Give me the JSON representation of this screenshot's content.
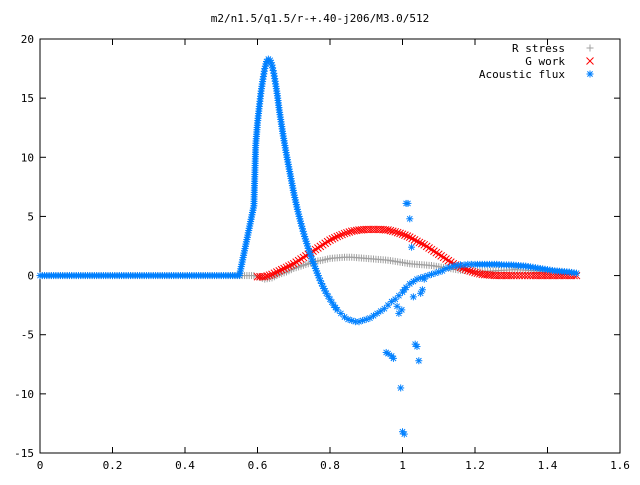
{
  "chart_data": {
    "type": "scatter",
    "title": "m2/n1.5/q1.5/r-+.40-j206/M3.0/512",
    "xlabel": "",
    "ylabel": "",
    "xlim": [
      0,
      1.6
    ],
    "ylim": [
      -15,
      20
    ],
    "grid": false,
    "legend_position": "top-right",
    "x_ticks": [
      "0",
      "0.2",
      "0.4",
      "0.6",
      "0.8",
      "1",
      "1.2",
      "1.4",
      "1.6"
    ],
    "y_ticks": [
      "-15",
      "-10",
      "-5",
      "0",
      "5",
      "10",
      "15",
      "20"
    ],
    "series": [
      {
        "name": "R stress",
        "marker": "+",
        "color": "#a0a0a0",
        "x": [
          0.0,
          0.1,
          0.2,
          0.3,
          0.4,
          0.5,
          0.59,
          0.6,
          0.62,
          0.64,
          0.66,
          0.68,
          0.7,
          0.72,
          0.74,
          0.76,
          0.78,
          0.8,
          0.82,
          0.84,
          0.86,
          0.88,
          0.9,
          0.92,
          0.94,
          0.96,
          0.98,
          1.0,
          1.02,
          1.04,
          1.06,
          1.08,
          1.1,
          1.12,
          1.14,
          1.16,
          1.18,
          1.2,
          1.22,
          1.25,
          1.28,
          1.31,
          1.34,
          1.37,
          1.4,
          1.43,
          1.46,
          1.48
        ],
        "y": [
          0,
          0,
          0,
          0,
          0,
          0,
          0,
          -0.1,
          -0.3,
          -0.2,
          0.1,
          0.3,
          0.6,
          0.8,
          1.0,
          1.2,
          1.3,
          1.45,
          1.5,
          1.55,
          1.55,
          1.5,
          1.45,
          1.4,
          1.35,
          1.3,
          1.2,
          1.1,
          1.0,
          0.95,
          0.9,
          0.85,
          0.75,
          0.65,
          0.55,
          0.45,
          0.4,
          0.35,
          0.35,
          0.4,
          0.45,
          0.5,
          0.45,
          0.4,
          0.35,
          0.3,
          0.25,
          0.2
        ]
      },
      {
        "name": "G work",
        "marker": "x",
        "color": "#ff0000",
        "x": [
          0.6,
          0.62,
          0.64,
          0.66,
          0.68,
          0.7,
          0.72,
          0.74,
          0.76,
          0.78,
          0.8,
          0.82,
          0.84,
          0.86,
          0.88,
          0.9,
          0.92,
          0.94,
          0.96,
          0.98,
          1.0,
          1.02,
          1.04,
          1.06,
          1.08,
          1.1,
          1.12,
          1.14,
          1.16,
          1.18,
          1.2,
          1.22,
          1.24,
          1.26,
          1.28,
          1.3,
          1.33,
          1.36,
          1.4,
          1.44,
          1.48
        ],
        "y": [
          -0.1,
          -0.1,
          0.1,
          0.4,
          0.7,
          1.0,
          1.4,
          1.8,
          2.2,
          2.6,
          3.0,
          3.3,
          3.55,
          3.75,
          3.85,
          3.9,
          3.9,
          3.9,
          3.85,
          3.7,
          3.5,
          3.25,
          2.9,
          2.6,
          2.2,
          1.8,
          1.4,
          1.0,
          0.7,
          0.45,
          0.25,
          0.1,
          0.05,
          0.0,
          0.0,
          0.0,
          0.0,
          0.0,
          0.0,
          0.0,
          0.0
        ]
      },
      {
        "name": "Acoustic flux",
        "marker": "*",
        "color": "#0080ff",
        "x": [
          0.0,
          0.05,
          0.1,
          0.15,
          0.2,
          0.25,
          0.3,
          0.35,
          0.4,
          0.45,
          0.5,
          0.55,
          0.59,
          0.595,
          0.6,
          0.605,
          0.61,
          0.615,
          0.62,
          0.625,
          0.63,
          0.635,
          0.64,
          0.645,
          0.65,
          0.655,
          0.66,
          0.67,
          0.68,
          0.69,
          0.7,
          0.71,
          0.72,
          0.73,
          0.74,
          0.75,
          0.76,
          0.77,
          0.78,
          0.79,
          0.8,
          0.81,
          0.82,
          0.83,
          0.84,
          0.85,
          0.86,
          0.87,
          0.88,
          0.89,
          0.9,
          0.91,
          0.92,
          0.93,
          0.94,
          0.95,
          0.96,
          0.97,
          0.98,
          0.99,
          1.0,
          1.005,
          1.01,
          1.02,
          1.03,
          1.04,
          1.05,
          1.06,
          1.07,
          1.08,
          1.09,
          1.1,
          1.11,
          1.12,
          1.13,
          1.14,
          1.15,
          1.16,
          1.17,
          1.18,
          1.19,
          1.2,
          1.22,
          1.24,
          1.26,
          1.28,
          1.3,
          1.32,
          1.34,
          1.36,
          1.38,
          1.4,
          1.42,
          1.44,
          1.46,
          1.48,
          0.955,
          0.96,
          0.97,
          0.975,
          0.99,
          0.995,
          1.0,
          1.005,
          1.01,
          1.015,
          1.02,
          1.025,
          1.03,
          1.035,
          1.04,
          1.045,
          1.05,
          1.055,
          1.06,
          0.985,
          0.998
        ],
        "y": [
          0,
          0,
          0,
          0,
          0,
          0,
          0,
          0,
          0,
          0,
          0,
          0,
          5.9,
          11.0,
          12.9,
          14.3,
          15.6,
          16.6,
          17.5,
          18.1,
          18.3,
          18.2,
          17.8,
          17.1,
          16.2,
          15.2,
          14.0,
          12.0,
          10.2,
          8.6,
          7.0,
          5.6,
          4.4,
          3.3,
          2.3,
          1.4,
          0.6,
          -0.2,
          -0.9,
          -1.5,
          -2.0,
          -2.5,
          -2.9,
          -3.2,
          -3.5,
          -3.7,
          -3.8,
          -3.9,
          -3.9,
          -3.8,
          -3.7,
          -3.6,
          -3.4,
          -3.2,
          -3.0,
          -2.8,
          -2.5,
          -2.2,
          -2.0,
          -1.7,
          -1.4,
          -1.2,
          -1.0,
          -0.7,
          -0.5,
          -0.3,
          -0.2,
          -0.1,
          0.0,
          0.1,
          0.2,
          0.3,
          0.4,
          0.6,
          0.7,
          0.8,
          0.85,
          0.9,
          0.9,
          0.95,
          0.95,
          0.95,
          0.95,
          0.95,
          0.95,
          0.9,
          0.9,
          0.85,
          0.8,
          0.7,
          0.6,
          0.5,
          0.4,
          0.35,
          0.3,
          0.2,
          -6.5,
          -6.6,
          -6.8,
          -7.0,
          -3.2,
          -9.5,
          -13.2,
          -13.4,
          6.1,
          6.1,
          4.8,
          2.4,
          -1.8,
          -5.8,
          -6.0,
          -7.2,
          -1.5,
          -1.2,
          -0.3,
          -2.6,
          -2.9
        ]
      }
    ]
  }
}
